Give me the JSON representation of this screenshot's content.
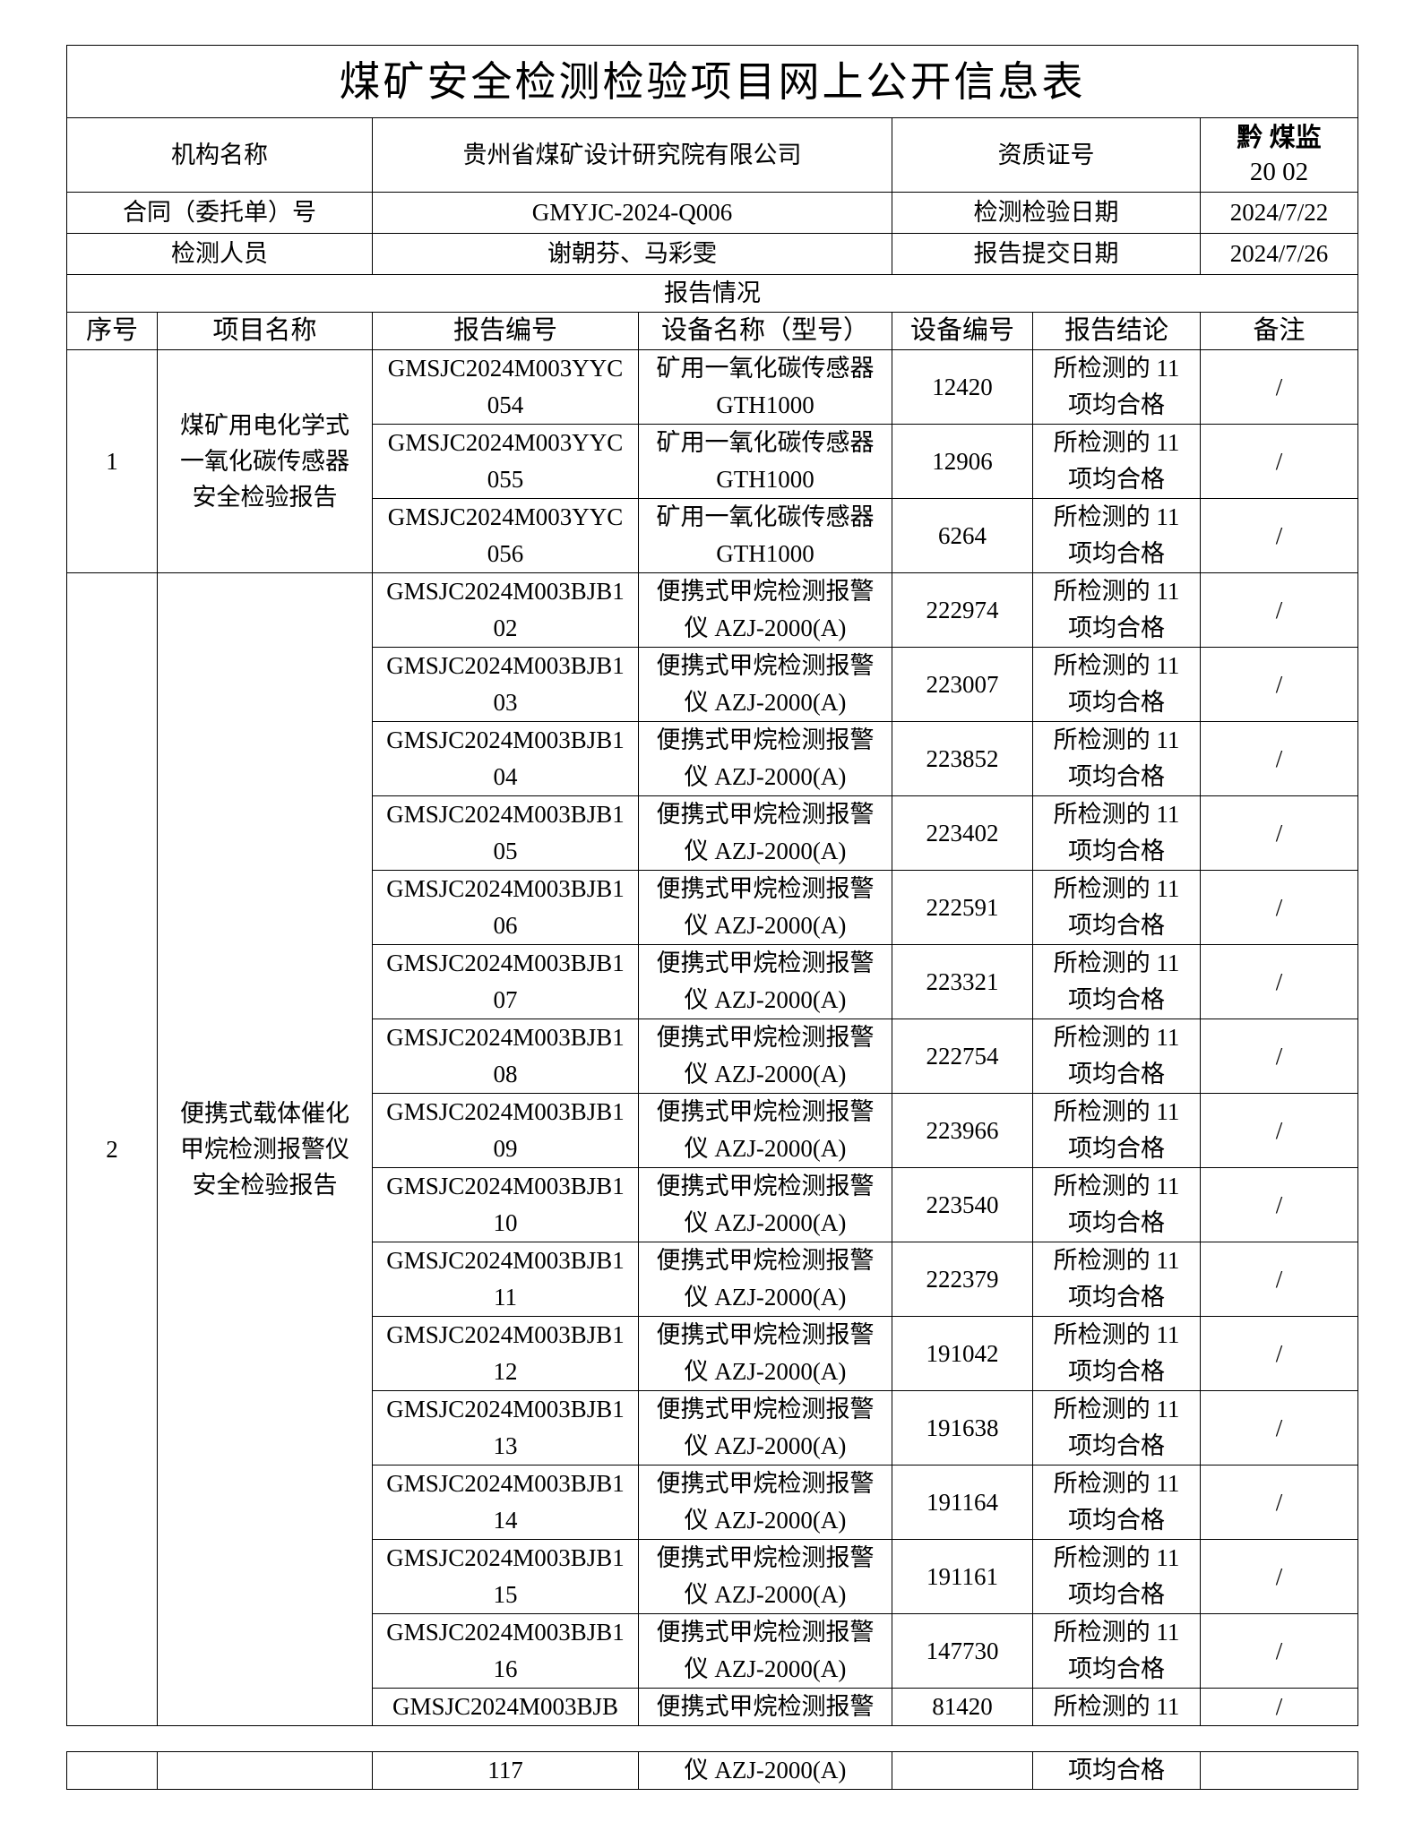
{
  "title": "煤矿安全检测检验项目网上公开信息表",
  "info": {
    "org_label": "机构名称",
    "org_value": "贵州省煤矿设计研究院有限公司",
    "cert_label": "资质证号",
    "cert_value_line1": "黔 煤监",
    "cert_value_line2": "20 02",
    "contract_label": "合同（委托单）号",
    "contract_value": "GMYJC-2024-Q006",
    "test_date_label": "检测检验日期",
    "test_date_value": "2024/7/22",
    "staff_label": "检测人员",
    "staff_value": "谢朝芬、马彩雯",
    "submit_date_label": "报告提交日期",
    "submit_date_value": "2024/7/26"
  },
  "report_section": "报告情况",
  "columns": [
    "序号",
    "项目名称",
    "报告编号",
    "设备名称（型号）",
    "设备编号",
    "报告结论",
    "备注"
  ],
  "groups": [
    {
      "seq": "1",
      "project": "煤矿用电化学式一氧化碳传感器安全检验报告",
      "rows": [
        {
          "report_no": "GMSJC2024M003YYC054",
          "device": "矿用一氧化碳传感器GTH1000",
          "device_no": "12420",
          "conclusion": "所检测的 11 项均合格",
          "remark": "/"
        },
        {
          "report_no": "GMSJC2024M003YYC055",
          "device": "矿用一氧化碳传感器GTH1000",
          "device_no": "12906",
          "conclusion": "所检测的 11 项均合格",
          "remark": "/"
        },
        {
          "report_no": "GMSJC2024M003YYC056",
          "device": "矿用一氧化碳传感器GTH1000",
          "device_no": "6264",
          "conclusion": "所检测的 11 项均合格",
          "remark": "/"
        }
      ]
    },
    {
      "seq": "2",
      "project": "便携式载体催化甲烷检测报警仪安全检验报告",
      "rows": [
        {
          "report_no": "GMSJC2024M003BJB102",
          "device": "便携式甲烷检测报警仪 AZJ-2000(A)",
          "device_no": "222974",
          "conclusion": "所检测的 11 项均合格",
          "remark": "/"
        },
        {
          "report_no": "GMSJC2024M003BJB103",
          "device": "便携式甲烷检测报警仪 AZJ-2000(A)",
          "device_no": "223007",
          "conclusion": "所检测的 11 项均合格",
          "remark": "/"
        },
        {
          "report_no": "GMSJC2024M003BJB104",
          "device": "便携式甲烷检测报警仪 AZJ-2000(A)",
          "device_no": "223852",
          "conclusion": "所检测的 11 项均合格",
          "remark": "/"
        },
        {
          "report_no": "GMSJC2024M003BJB105",
          "device": "便携式甲烷检测报警仪 AZJ-2000(A)",
          "device_no": "223402",
          "conclusion": "所检测的 11 项均合格",
          "remark": "/"
        },
        {
          "report_no": "GMSJC2024M003BJB106",
          "device": "便携式甲烷检测报警仪 AZJ-2000(A)",
          "device_no": "222591",
          "conclusion": "所检测的 11 项均合格",
          "remark": "/"
        },
        {
          "report_no": "GMSJC2024M003BJB107",
          "device": "便携式甲烷检测报警仪 AZJ-2000(A)",
          "device_no": "223321",
          "conclusion": "所检测的 11 项均合格",
          "remark": "/"
        },
        {
          "report_no": "GMSJC2024M003BJB108",
          "device": "便携式甲烷检测报警仪 AZJ-2000(A)",
          "device_no": "222754",
          "conclusion": "所检测的 11 项均合格",
          "remark": "/"
        },
        {
          "report_no": "GMSJC2024M003BJB109",
          "device": "便携式甲烷检测报警仪 AZJ-2000(A)",
          "device_no": "223966",
          "conclusion": "所检测的 11 项均合格",
          "remark": "/"
        },
        {
          "report_no": "GMSJC2024M003BJB110",
          "device": "便携式甲烷检测报警仪 AZJ-2000(A)",
          "device_no": "223540",
          "conclusion": "所检测的 11 项均合格",
          "remark": "/"
        },
        {
          "report_no": "GMSJC2024M003BJB111",
          "device": "便携式甲烷检测报警仪 AZJ-2000(A)",
          "device_no": "222379",
          "conclusion": "所检测的 11 项均合格",
          "remark": "/"
        },
        {
          "report_no": "GMSJC2024M003BJB112",
          "device": "便携式甲烷检测报警仪 AZJ-2000(A)",
          "device_no": "191042",
          "conclusion": "所检测的 11 项均合格",
          "remark": "/"
        },
        {
          "report_no": "GMSJC2024M003BJB113",
          "device": "便携式甲烷检测报警仪 AZJ-2000(A)",
          "device_no": "191638",
          "conclusion": "所检测的 11 项均合格",
          "remark": "/"
        },
        {
          "report_no": "GMSJC2024M003BJB114",
          "device": "便携式甲烷检测报警仪 AZJ-2000(A)",
          "device_no": "191164",
          "conclusion": "所检测的 11 项均合格",
          "remark": "/"
        },
        {
          "report_no": "GMSJC2024M003BJB115",
          "device": "便携式甲烷检测报警仪 AZJ-2000(A)",
          "device_no": "191161",
          "conclusion": "所检测的 11 项均合格",
          "remark": "/"
        },
        {
          "report_no": "GMSJC2024M003BJB116",
          "device": "便携式甲烷检测报警仪 AZJ-2000(A)",
          "device_no": "147730",
          "conclusion": "所检测的 11 项均合格",
          "remark": "/"
        }
      ],
      "split_row": {
        "report_no_top": "GMSJC2024M003BJB",
        "device_top": "便携式甲烷检测报警",
        "device_no": "81420",
        "conclusion_top": "所检测的 11",
        "remark": "/",
        "report_no_bottom": "117",
        "device_bottom": "仪 AZJ-2000(A)",
        "conclusion_bottom": "项均合格"
      }
    }
  ]
}
